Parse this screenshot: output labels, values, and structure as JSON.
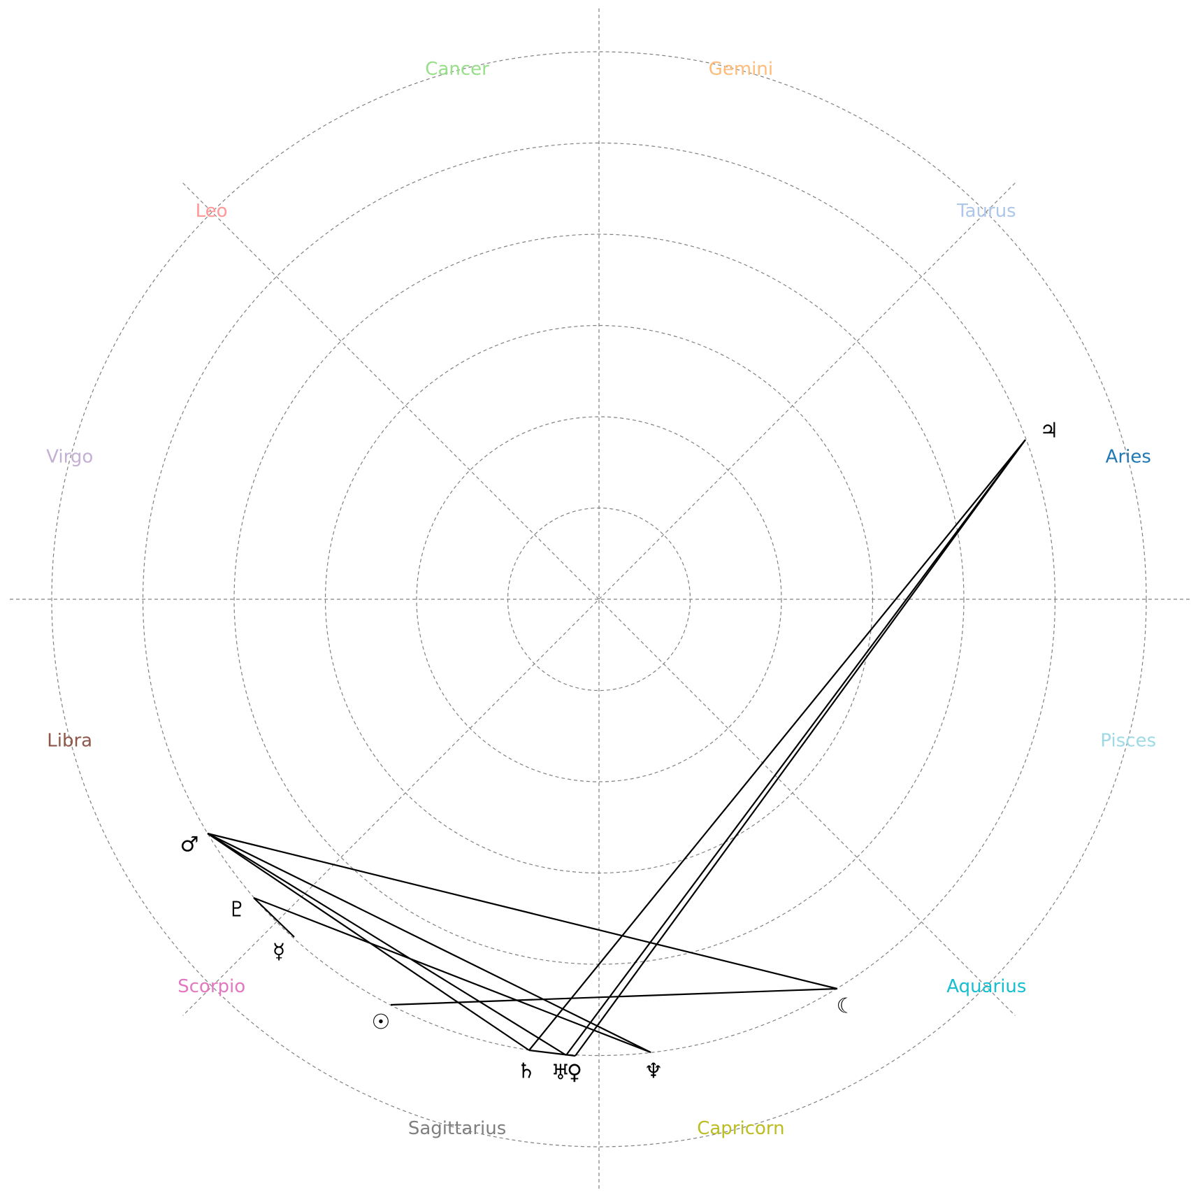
{
  "zodiac_signs": [
    {
      "name": "Aries",
      "color": "#1f77b4"
    },
    {
      "name": "Taurus",
      "color": "#aec7e8"
    },
    {
      "name": "Gemini",
      "color": "#ffbb78"
    },
    {
      "name": "Cancer",
      "color": "#98df8a"
    },
    {
      "name": "Leo",
      "color": "#ff9896"
    },
    {
      "name": "Virgo",
      "color": "#c5b0d5"
    },
    {
      "name": "Libra",
      "color": "#8c564b"
    },
    {
      "name": "Scorpio",
      "color": "#e377c2"
    },
    {
      "name": "Sagittarius",
      "color": "#7f7f7f"
    },
    {
      "name": "Capricorn",
      "color": "#bcbd22"
    },
    {
      "name": "Aquarius",
      "color": "#17becf"
    },
    {
      "name": "Pisces",
      "color": "#9edae5"
    }
  ],
  "planets": [
    {
      "id": "jupiter",
      "glyph": "♃"
    },
    {
      "id": "moon",
      "glyph": "☾"
    },
    {
      "id": "sun",
      "glyph": "☉"
    },
    {
      "id": "mercury",
      "glyph": "☿"
    },
    {
      "id": "pluto",
      "glyph": "♇"
    },
    {
      "id": "mars",
      "glyph": "♂"
    },
    {
      "id": "saturn",
      "glyph": "♄"
    },
    {
      "id": "uranus",
      "glyph": "♅"
    },
    {
      "id": "venus",
      "glyph": "♀"
    },
    {
      "id": "neptune",
      "glyph": "♆"
    }
  ],
  "aspects": [
    [
      "jupiter",
      "saturn"
    ],
    [
      "jupiter",
      "uranus"
    ],
    [
      "jupiter",
      "venus"
    ],
    [
      "saturn",
      "venus"
    ],
    [
      "mars",
      "moon"
    ],
    [
      "mars",
      "saturn"
    ],
    [
      "mars",
      "uranus"
    ],
    [
      "mars",
      "neptune"
    ],
    [
      "pluto",
      "mercury"
    ],
    [
      "pluto",
      "neptune"
    ],
    [
      "sun",
      "moon"
    ]
  ]
}
